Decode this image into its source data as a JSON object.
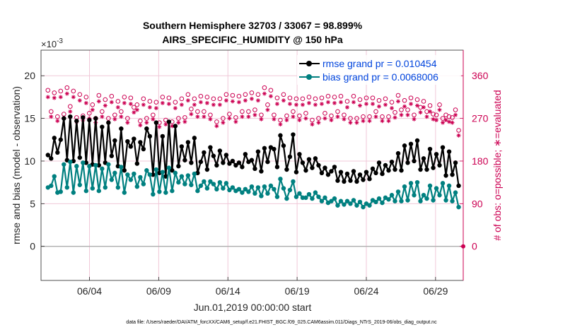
{
  "chart_data": {
    "type": "line",
    "title_line1": "Southern Hemisphere 32703 / 33067 = 98.899%",
    "title_line2": "AIRS_SPECIFIC_HUMIDITY @ 150 hPa",
    "ylabel": "rmse and bias (model - observation)",
    "ylabel_right": "# of obs: o=possible; ∗=evaluated",
    "xlabel": "Jun.01,2019 00:00:00 start",
    "y_exponent": "×10",
    "y_exponent_power": "-3",
    "ylim": [
      -4,
      23
    ],
    "yticks": [
      0,
      5,
      10,
      15,
      20
    ],
    "ytick_labels": [
      "0",
      "5",
      "10",
      "15",
      "20"
    ],
    "y2lim": [
      -4,
      23
    ],
    "y2ticks": [
      0,
      5,
      10,
      15,
      20
    ],
    "y2tick_labels": [
      "0",
      "90",
      "180",
      "270",
      "360"
    ],
    "xlim": [
      0,
      30.5
    ],
    "xticks": [
      3.5,
      8.5,
      13.5,
      18.5,
      23.5,
      28.5
    ],
    "xtick_labels": [
      "06/04",
      "06/09",
      "06/14",
      "06/19",
      "06/24",
      "06/29"
    ],
    "footer": "data file: /Users/raeder/DAI/ATM_forcXX/CAM6_setup/f.e21.FHIST_BGC.f09_025.CAM6assim.011/Diags_NTrS_2019-06/obs_diag_output.nc",
    "colors": {
      "rmse": "#000000",
      "bias": "#008080",
      "obs": "#cc0052",
      "zero": "#b4b4b4"
    },
    "series": [
      {
        "name": "rmse",
        "legend": "rmse grand pr = 0.010454",
        "values": [
          10.7,
          10.3,
          12.7,
          11.0,
          12.5,
          15.0,
          10.1,
          15.2,
          10.0,
          14.7,
          10.4,
          15.1,
          9.8,
          14.8,
          9.6,
          15.0,
          9.5,
          14.0,
          9.8,
          14.5,
          10.6,
          12.4,
          9.4,
          13.8,
          8.9,
          12.3,
          11.7,
          12.6,
          9.7,
          12.2,
          11.4,
          13.8,
          12.9,
          8.4,
          14.5,
          8.6,
          12.9,
          8.2,
          14.6,
          8.9,
          14.1,
          9.4,
          11.7,
          10.1,
          12.2,
          9.8,
          12.7,
          8.6,
          9.9,
          11.0,
          9.0,
          11.6,
          10.6,
          9.5,
          11.2,
          9.8,
          10.7,
          9.7,
          10.0,
          9.5,
          9.8,
          9.3,
          10.8,
          9.9,
          10.1,
          9.1,
          11.1,
          8.8,
          11.5,
          9.9,
          11.6,
          11.4,
          9.3,
          13.0,
          11.8,
          9.0,
          10.5,
          13.1,
          8.7,
          10.8,
          9.8,
          8.9,
          10.2,
          9.2,
          10.3,
          9.5,
          8.6,
          9.2,
          8.4,
          8.8,
          9.3,
          7.7,
          8.7,
          7.6,
          8.5,
          7.7,
          8.8,
          7.6,
          8.4,
          7.8,
          8.7,
          7.9,
          9.1,
          8.6,
          9.8,
          8.5,
          9.5,
          8.9,
          9.9,
          9.0,
          10.9,
          8.9,
          11.8,
          9.8,
          12.0,
          10.0,
          12.4,
          9.0,
          10.3,
          9.0,
          11.4,
          9.2,
          10.8,
          9.5,
          11.6,
          8.3,
          11.1,
          8.4,
          9.8,
          7.1
        ]
      },
      {
        "name": "bias",
        "legend": "bias grand pr = 0.0068006",
        "values": [
          6.9,
          7.1,
          8.2,
          6.3,
          6.4,
          9.6,
          6.9,
          9.9,
          6.3,
          9.4,
          7.2,
          9.8,
          6.5,
          9.4,
          6.8,
          9.5,
          6.5,
          9.1,
          6.9,
          9.6,
          7.8,
          8.6,
          6.9,
          9.3,
          6.3,
          8.4,
          7.8,
          8.5,
          7.0,
          8.1,
          7.3,
          8.9,
          8.4,
          6.1,
          9.0,
          6.4,
          8.7,
          6.3,
          9.2,
          6.5,
          8.6,
          7.5,
          8.2,
          7.3,
          8.3,
          7.2,
          8.5,
          6.5,
          7.1,
          7.6,
          6.8,
          7.6,
          7.3,
          6.7,
          7.5,
          6.8,
          7.4,
          6.6,
          6.9,
          6.5,
          6.7,
          6.3,
          6.7,
          6.4,
          7.0,
          6.2,
          6.9,
          5.9,
          7.0,
          6.2,
          7.1,
          6.7,
          5.8,
          7.9,
          6.8,
          5.6,
          6.6,
          7.6,
          5.8,
          6.2,
          5.7,
          5.7,
          6.1,
          5.6,
          6.3,
          5.8,
          5.3,
          5.7,
          5.1,
          5.3,
          5.6,
          4.8,
          5.3,
          4.9,
          5.3,
          5.0,
          5.4,
          4.8,
          5.2,
          4.6,
          5.0,
          4.8,
          5.4,
          5.2,
          5.6,
          5.1,
          5.7,
          5.5,
          6.0,
          5.3,
          6.4,
          5.3,
          7.0,
          5.4,
          7.4,
          6.0,
          7.5,
          5.3,
          6.0,
          5.6,
          7.1,
          5.4,
          6.8,
          6.0,
          7.4,
          5.4,
          7.1,
          5.3,
          6.3,
          4.6
        ]
      },
      {
        "name": "obs_possible",
        "marker": "o",
        "values": [
          18.3,
          15.8,
          18.0,
          15.2,
          18.2,
          15.5,
          18.6,
          16.4,
          18.2,
          15.1,
          17.8,
          15.3,
          17.5,
          15.6,
          16.6,
          15.0,
          17.7,
          15.8,
          17.2,
          15.0,
          17.6,
          15.4,
          17.0,
          15.8,
          17.5,
          15.0,
          17.4,
          16.3,
          16.6,
          14.7,
          17.3,
          15.0,
          17.0,
          15.4,
          16.9,
          14.5,
          17.5,
          14.8,
          17.4,
          14.6,
          16.9,
          15.0,
          17.3,
          15.1,
          17.8,
          16.1,
          17.3,
          15.8,
          17.6,
          15.8,
          17.5,
          15.4,
          17.3,
          14.6,
          17.3,
          15.0,
          17.8,
          15.5,
          17.7,
          15.1,
          17.6,
          15.8,
          17.8,
          15.8,
          18.0,
          16.0,
          17.8,
          15.4,
          18.6,
          16.6,
          18.3,
          15.4,
          17.4,
          14.8,
          17.8,
          15.3,
          17.4,
          15.8,
          17.3,
          15.3,
          17.3,
          15.6,
          17.5,
          14.8,
          17.3,
          15.0,
          17.4,
          15.6,
          17.6,
          15.3,
          17.5,
          15.8,
          17.6,
          15.4,
          17.0,
          15.0,
          17.6,
          15.0,
          17.2,
          15.2,
          17.4,
          15.2,
          17.4,
          15.8,
          17.1,
          15.2,
          17.3,
          15.2,
          16.9,
          15.7,
          17.7,
          16.0,
          17.1,
          16.0,
          17.4,
          15.4,
          17.2,
          16.3,
          17.0,
          15.8,
          16.5,
          15.5,
          15.4,
          16.6,
          15.0,
          15.4,
          15.2,
          15.1,
          16.0,
          13.6
        ]
      },
      {
        "name": "obs_evaluated",
        "marker": "*",
        "values": [
          17.5,
          15.2,
          17.4,
          14.7,
          17.5,
          15.0,
          17.9,
          15.8,
          17.5,
          14.6,
          17.1,
          14.8,
          16.8,
          15.0,
          16.0,
          14.5,
          17.0,
          15.2,
          16.5,
          14.5,
          16.9,
          14.9,
          16.3,
          15.2,
          16.8,
          14.5,
          16.7,
          15.7,
          16.0,
          14.2,
          16.6,
          14.5,
          16.3,
          14.9,
          16.2,
          14.0,
          16.8,
          14.3,
          16.7,
          14.1,
          16.2,
          14.5,
          16.6,
          14.6,
          17.1,
          15.5,
          16.6,
          15.2,
          16.9,
          15.2,
          16.8,
          14.9,
          16.6,
          14.1,
          16.6,
          14.5,
          17.1,
          15.0,
          17.0,
          14.6,
          16.9,
          15.2,
          17.1,
          15.2,
          17.3,
          15.4,
          17.1,
          14.9,
          17.9,
          16.0,
          17.6,
          14.9,
          16.7,
          14.3,
          17.1,
          14.8,
          16.7,
          15.2,
          16.6,
          14.8,
          16.6,
          15.0,
          16.8,
          14.3,
          16.6,
          14.5,
          16.7,
          15.0,
          16.9,
          14.8,
          16.8,
          15.2,
          16.9,
          14.9,
          16.3,
          14.5,
          16.9,
          14.5,
          16.5,
          14.7,
          16.7,
          14.7,
          16.7,
          15.2,
          16.4,
          14.7,
          16.6,
          14.7,
          16.2,
          15.1,
          17.0,
          15.4,
          16.4,
          15.4,
          16.7,
          14.9,
          16.5,
          15.7,
          16.3,
          15.2,
          15.8,
          14.9,
          14.8,
          16.0,
          14.5,
          14.8,
          14.6,
          14.5,
          15.4,
          13.0
        ]
      }
    ]
  }
}
